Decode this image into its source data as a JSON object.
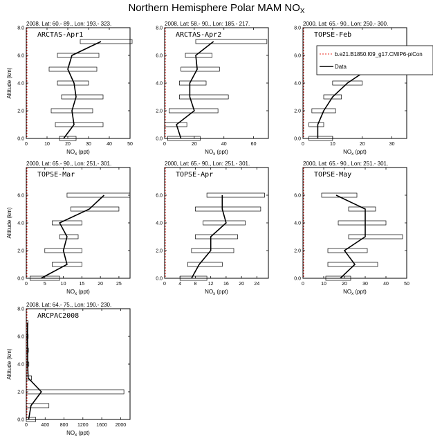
{
  "figure": {
    "title_main": "Northern Hemisphere Polar MAM NO",
    "title_sub": "X"
  },
  "legend": {
    "model_label": "b.e21.B1850.f09_g17.CMIP6-piCon",
    "data_label": "Data",
    "model_color": "#e8261e",
    "data_color": "#000000"
  },
  "colors": {
    "model": "#e8261e",
    "data": "#000000",
    "box": "#000000"
  },
  "chart_data": [
    {
      "type": "line",
      "campaign": "ARCTAS-Apr1",
      "header": "2008, Lat:  60.- 89., Lon: 193.- 323.",
      "xlabel": "NO",
      "xlabel_sub": "x",
      "xlabel_unit": " (ppt)",
      "ylabel": "Altitude (km)",
      "xlim": [
        0,
        50
      ],
      "ylim": [
        0,
        8
      ],
      "xticks": [
        0,
        10,
        20,
        30,
        40,
        50
      ],
      "yticks": [
        "0.0",
        "2.0",
        "4.0",
        "6.0",
        "8.0"
      ],
      "data": {
        "altitude": [
          0,
          1,
          2,
          3,
          4,
          5,
          6,
          7
        ],
        "median": [
          18,
          23,
          22,
          24,
          23,
          20,
          22,
          36
        ],
        "box_low": [
          16,
          14,
          12,
          17,
          15,
          11,
          15,
          26
        ],
        "box_high": [
          24,
          37,
          32,
          37,
          30,
          34,
          35,
          51
        ]
      }
    },
    {
      "type": "line",
      "campaign": "ARCTAS-Apr2",
      "header": "2008, Lat:  58.- 90., Lon: 185.- 217.",
      "xlabel": "NO",
      "xlabel_sub": "x",
      "xlabel_unit": " (ppt)",
      "ylabel": "Altitude (km)",
      "xlim": [
        0,
        70
      ],
      "ylim": [
        0,
        8
      ],
      "xticks": [
        0,
        20,
        40,
        60
      ],
      "yticks": [
        "0.0",
        "2.0",
        "4.0",
        "6.0",
        "8.0"
      ],
      "data": {
        "altitude": [
          0,
          1,
          2,
          3,
          4,
          5,
          6,
          7
        ],
        "median": [
          11,
          8,
          20,
          17,
          17,
          22,
          21,
          33
        ],
        "box_low": [
          2,
          0,
          3,
          10,
          10,
          11,
          14,
          21
        ],
        "box_high": [
          24,
          15,
          36,
          43,
          28,
          37,
          32,
          69
        ]
      }
    },
    {
      "type": "line",
      "campaign": "TOPSE-Feb",
      "header": "2000, Lat: 65.- 90., Lon: 250.- 300.",
      "xlabel": "NO",
      "xlabel_sub": "x",
      "xlabel_unit": " (ppt)",
      "ylabel": "Altitude (km)",
      "xlim": [
        0,
        35
      ],
      "ylim": [
        0,
        8
      ],
      "xticks": [
        0,
        10,
        20,
        30
      ],
      "yticks": [
        "0.0",
        "2.0",
        "4.0",
        "6.0",
        "8.0"
      ],
      "data": {
        "altitude": [
          0,
          1,
          2,
          3,
          4,
          5,
          6
        ],
        "median": [
          5,
          5,
          7,
          10,
          15,
          22,
          18
        ],
        "box_low": [
          2,
          2,
          3,
          7,
          10,
          17,
          15
        ],
        "box_high": [
          10,
          7,
          11,
          13,
          20,
          32,
          23
        ]
      }
    },
    {
      "type": "line",
      "campaign": "TOPSE-Mar",
      "header": "2000, Lat: 65.- 90., Lon: 251.- 301.",
      "xlabel": "NO",
      "xlabel_sub": "x",
      "xlabel_unit": " (ppt)",
      "ylabel": "Altitude (km)",
      "xlim": [
        0,
        28
      ],
      "ylim": [
        0,
        8
      ],
      "xticks": [
        0,
        5,
        10,
        15,
        20,
        25
      ],
      "yticks": [
        "0.0",
        "2.0",
        "4.0",
        "6.0"
      ],
      "data": {
        "altitude": [
          0,
          1,
          2,
          3,
          4,
          5,
          6
        ],
        "median": [
          4,
          11,
          10,
          11,
          9,
          17,
          21
        ],
        "box_low": [
          1,
          7,
          5,
          9,
          7,
          12,
          11
        ],
        "box_high": [
          9,
          15,
          15,
          14,
          15,
          25,
          28
        ]
      }
    },
    {
      "type": "line",
      "campaign": "TOPSE-Apr",
      "header": "2000, Lat: 65.- 90., Lon: 251.- 301.",
      "xlabel": "NO",
      "xlabel_sub": "x",
      "xlabel_unit": " (ppt)",
      "ylabel": "Altitude (km)",
      "xlim": [
        0,
        27
      ],
      "ylim": [
        0,
        8
      ],
      "xticks": [
        0,
        4,
        8,
        12,
        16,
        20,
        24
      ],
      "yticks": [
        "0.0",
        "2.0",
        "4.0",
        "6.0"
      ],
      "data": {
        "altitude": [
          0,
          1,
          2,
          3,
          4,
          5,
          6
        ],
        "median": [
          7,
          9,
          12,
          12,
          16,
          15,
          15
        ],
        "box_low": [
          4,
          6,
          7,
          8,
          10,
          8,
          11
        ],
        "box_high": [
          11,
          15,
          18,
          19,
          21,
          25,
          26
        ]
      }
    },
    {
      "type": "line",
      "campaign": "TOPSE-May",
      "header": "2000, Lat: 65.- 90., Lon: 251.- 301.",
      "xlabel": "NO",
      "xlabel_sub": "x",
      "xlabel_unit": " (ppt)",
      "ylabel": "Altitude (km)",
      "xlim": [
        0,
        50
      ],
      "ylim": [
        0,
        8
      ],
      "xticks": [
        0,
        10,
        20,
        30,
        40,
        50
      ],
      "yticks": [
        "0.0",
        "2.0",
        "4.0",
        "6.0"
      ],
      "data": {
        "altitude": [
          0,
          1,
          2,
          3,
          4,
          5,
          6
        ],
        "median": [
          18,
          25,
          20,
          30,
          30,
          30,
          16
        ],
        "box_low": [
          11,
          12,
          12,
          22,
          17,
          22,
          9
        ],
        "box_high": [
          23,
          36,
          31,
          48,
          40,
          35,
          26
        ]
      }
    },
    {
      "type": "line",
      "campaign": "ARCPAC2008",
      "header": "2008, Lat: 64.- 75., Lon: 190.- 230.",
      "xlabel": "NO",
      "xlabel_sub": "x",
      "xlabel_unit": " (ppt)",
      "ylabel": "Altitude (km)",
      "xlim": [
        0,
        2200
      ],
      "ylim": [
        0,
        8
      ],
      "xticks": [
        0,
        400,
        800,
        1200,
        1600,
        2000
      ],
      "yticks": [
        "0.0",
        "2.0",
        "4.0",
        "6.0",
        "8.0"
      ],
      "data": {
        "altitude": [
          0,
          1,
          2,
          3,
          4,
          5,
          6,
          7
        ],
        "median": [
          50,
          100,
          320,
          40,
          30,
          30,
          25,
          30
        ],
        "box_low": [
          0,
          0,
          0,
          0,
          0,
          0,
          0,
          0
        ],
        "box_high": [
          200,
          480,
          2070,
          110,
          55,
          45,
          40,
          35
        ]
      }
    }
  ]
}
